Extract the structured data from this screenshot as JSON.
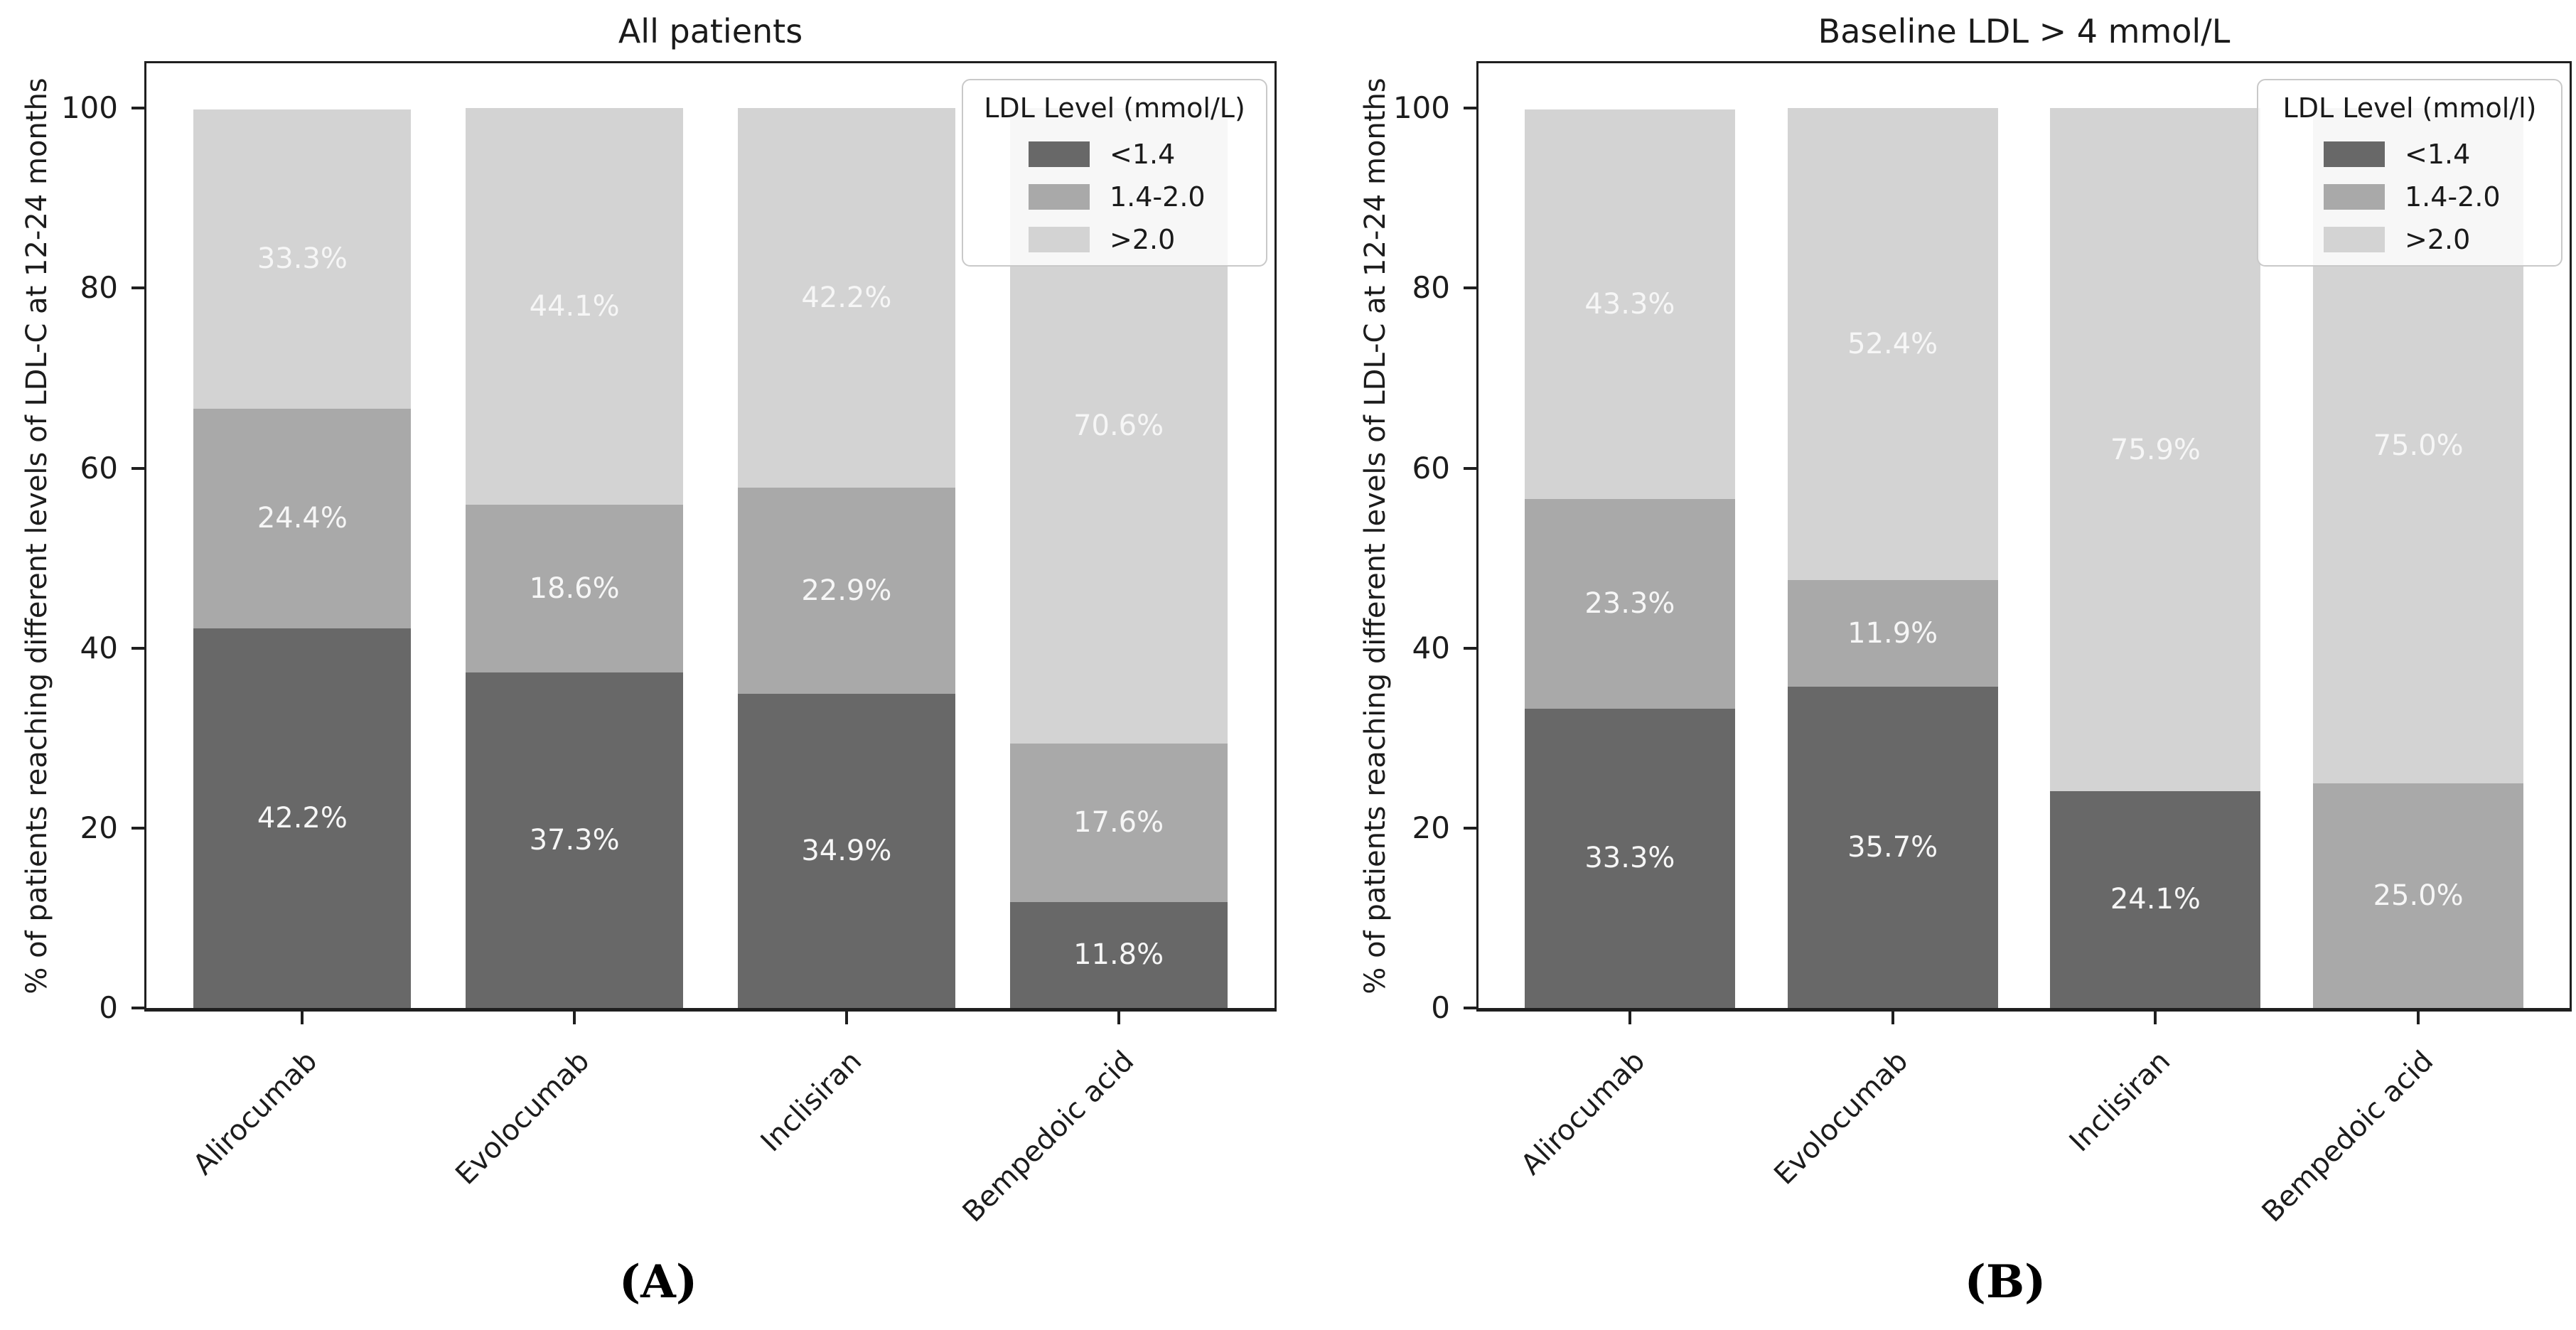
{
  "style": {
    "background": "#ffffff",
    "spine_color": "#1f1f1f",
    "text_color": "#1a1a1a",
    "bar_label_color": "#f6f6f6",
    "legend_border_color": "#c9c9c9"
  },
  "chart_data": [
    {
      "type": "bar",
      "stacked": true,
      "title": "All patients",
      "caption": "(A)",
      "ylabel": "% of patients reaching different levels of LDL-C at 12-24 months",
      "xlabel": "",
      "ylim": [
        0,
        100
      ],
      "yticks": [
        "0",
        "20",
        "40",
        "60",
        "80",
        "100"
      ],
      "grid": false,
      "legend": {
        "title": "LDL Level (mmol/L)",
        "position": "upper right"
      },
      "categories": [
        "Alirocumab",
        "Evolocumab",
        "Inclisiran",
        "Bempedoic acid"
      ],
      "series": [
        {
          "name": "<1.4",
          "color": "#686868",
          "values": [
            42.2,
            37.3,
            34.9,
            11.8
          ],
          "labels": [
            "42.2%",
            "37.3%",
            "34.9%",
            "11.8%"
          ]
        },
        {
          "name": "1.4-2.0",
          "color": "#a9a9a9",
          "values": [
            24.4,
            18.6,
            22.9,
            17.6
          ],
          "labels": [
            "24.4%",
            "18.6%",
            "22.9%",
            "17.6%"
          ]
        },
        {
          "name": ">2.0",
          "color": "#d3d3d3",
          "values": [
            33.3,
            44.1,
            42.2,
            70.6
          ],
          "labels": [
            "33.3%",
            "44.1%",
            "42.2%",
            "70.6%"
          ]
        }
      ]
    },
    {
      "type": "bar",
      "stacked": true,
      "title": "Baseline LDL > 4 mmol/L",
      "caption": "(B)",
      "ylabel": "% of patients reaching different levels of LDL-C at 12-24 months",
      "xlabel": "",
      "ylim": [
        0,
        100
      ],
      "yticks": [
        "0",
        "20",
        "40",
        "60",
        "80",
        "100"
      ],
      "grid": false,
      "legend": {
        "title": "LDL Level (mmol/l)",
        "position": "upper right"
      },
      "categories": [
        "Alirocumab",
        "Evolocumab",
        "Inclisiran",
        "Bempedoic acid"
      ],
      "series": [
        {
          "name": "<1.4",
          "color": "#686868",
          "values": [
            33.3,
            35.7,
            24.1,
            0
          ],
          "labels": [
            "33.3%",
            "35.7%",
            "24.1%",
            ""
          ]
        },
        {
          "name": "1.4-2.0",
          "color": "#a9a9a9",
          "values": [
            23.3,
            11.9,
            0,
            25.0
          ],
          "labels": [
            "23.3%",
            "11.9%",
            "",
            "25.0%"
          ]
        },
        {
          "name": ">2.0",
          "color": "#d3d3d3",
          "values": [
            43.3,
            52.4,
            75.9,
            75.0
          ],
          "labels": [
            "43.3%",
            "52.4%",
            "75.9%",
            "75.0%"
          ]
        }
      ]
    }
  ]
}
